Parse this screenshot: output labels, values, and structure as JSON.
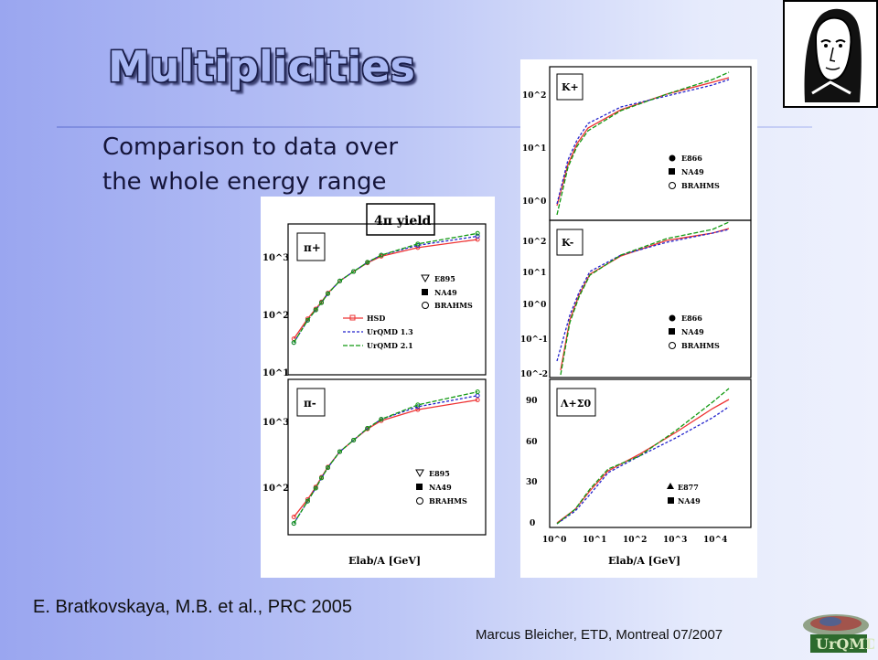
{
  "slide": {
    "title": "Multiplicities",
    "bullet": "Comparison to data over the whole energy range",
    "reference": "E. Bratkovskaya, M.B. et al., PRC 2005",
    "footer": "Marcus Bleicher, ETD, Montreal 07/2007",
    "logo_text": "UrQMD"
  },
  "chart_data": [
    {
      "type": "line",
      "panel": "pi+",
      "header": "4π yield",
      "panel_label": "π+",
      "xscale": "log",
      "yscale": "log",
      "yticks": [
        "10^1",
        "10^2",
        "10^3"
      ],
      "legend_models": [
        "HSD",
        "UrQMD 1.3",
        "UrQMD 2.1"
      ],
      "legend_data": [
        "E895",
        "NA49",
        "BRAHMS"
      ],
      "x": [
        2,
        4,
        6,
        8,
        11,
        20,
        40,
        80,
        160,
        1000,
        20000
      ],
      "series": [
        {
          "name": "HSD",
          "values": [
            35,
            80,
            120,
            160,
            230,
            380,
            560,
            800,
            1050,
            1500,
            2100
          ]
        },
        {
          "name": "UrQMD 1.3",
          "values": [
            30,
            75,
            115,
            155,
            225,
            380,
            560,
            820,
            1100,
            1650,
            2400
          ]
        },
        {
          "name": "UrQMD 2.1",
          "values": [
            30,
            75,
            115,
            155,
            225,
            380,
            560,
            820,
            1100,
            1750,
            2700
          ]
        }
      ]
    },
    {
      "type": "line",
      "panel": "pi-",
      "panel_label": "π-",
      "xscale": "log",
      "yscale": "log",
      "yticks": [
        "10^2",
        "10^3"
      ],
      "xlabel": "Elab/A [GeV]",
      "legend_data": [
        "E895",
        "NA49",
        "BRAHMS"
      ],
      "x": [
        2,
        4,
        6,
        8,
        11,
        20,
        40,
        80,
        160,
        1000,
        20000
      ],
      "series": [
        {
          "name": "HSD",
          "values": [
            55,
            95,
            140,
            190,
            260,
            420,
            600,
            850,
            1100,
            1550,
            2100
          ]
        },
        {
          "name": "UrQMD 1.3",
          "values": [
            45,
            90,
            135,
            185,
            255,
            420,
            600,
            870,
            1150,
            1700,
            2400
          ]
        },
        {
          "name": "UrQMD 2.1",
          "values": [
            45,
            90,
            135,
            185,
            255,
            420,
            600,
            870,
            1150,
            1800,
            2700
          ]
        }
      ]
    },
    {
      "type": "line",
      "panel": "K+",
      "panel_label": "K+",
      "xscale": "log",
      "yscale": "log",
      "yticks": [
        "10^0",
        "10^1",
        "10^2"
      ],
      "legend_data": [
        "E866",
        "NA49",
        "BRAHMS"
      ]
    },
    {
      "type": "line",
      "panel": "K-",
      "panel_label": "K-",
      "xscale": "log",
      "yscale": "log",
      "yticks": [
        "10^-2",
        "10^-1",
        "10^0",
        "10^1",
        "10^2"
      ],
      "legend_data": [
        "E866",
        "NA49",
        "BRAHMS"
      ]
    },
    {
      "type": "line",
      "panel": "Lambda+Sigma0",
      "panel_label": "Λ+Σ0",
      "xscale": "log",
      "yticks": [
        "0",
        "30",
        "60",
        "90"
      ],
      "xticks": [
        "10^0",
        "10^1",
        "10^2",
        "10^3",
        "10^4"
      ],
      "xlabel": "Elab/A [GeV]",
      "legend_data": [
        "E877",
        "NA49"
      ]
    }
  ]
}
